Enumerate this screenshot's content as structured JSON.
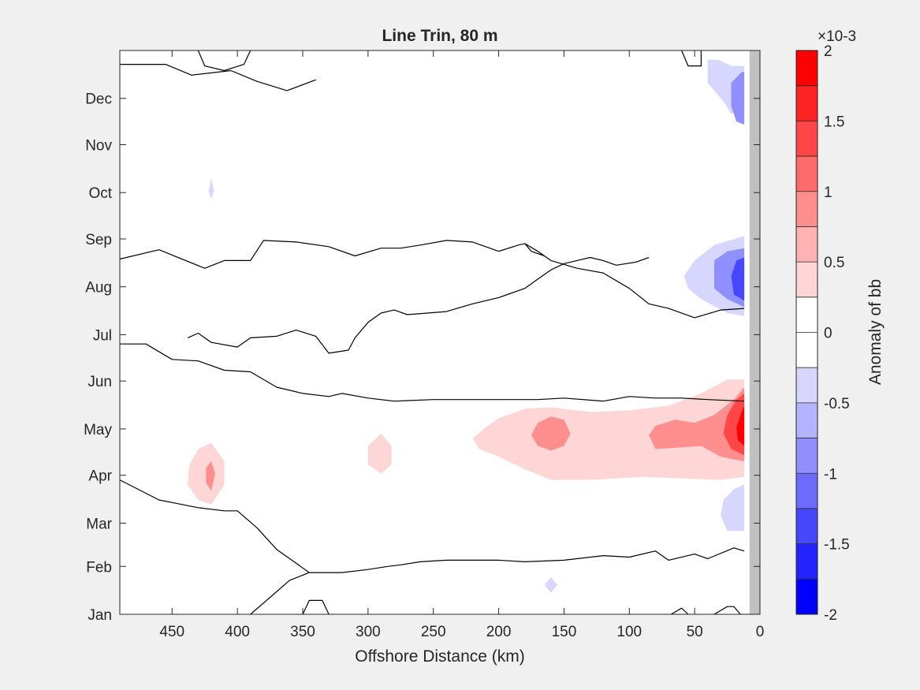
{
  "chart_data": {
    "type": "contour",
    "title": "Line Trin, 80 m",
    "xlabel": "Offshore Distance (km)",
    "ylabel": "",
    "xlim": [
      490,
      0
    ],
    "x_reversed": true,
    "x_ticks": [
      450,
      400,
      350,
      300,
      250,
      200,
      150,
      100,
      50,
      0
    ],
    "y_ticks": [
      "Jan",
      "Feb",
      "Mar",
      "Apr",
      "May",
      "Jun",
      "Jul",
      "Aug",
      "Sep",
      "Oct",
      "Nov",
      "Dec"
    ],
    "y_tick_days": [
      1,
      32,
      60,
      91,
      121,
      152,
      182,
      213,
      244,
      274,
      305,
      335
    ],
    "ylim_days": [
      1,
      366
    ],
    "land_mask_km": [
      0,
      8
    ],
    "colorbar": {
      "label": "Anomaly of bb",
      "exponent": "×10-3",
      "clim": [
        -2,
        2
      ],
      "ticks": [
        2,
        1.5,
        1,
        0.5,
        0,
        -0.5,
        -1,
        -1.5,
        -2
      ],
      "tick_labels": [
        "2",
        "1.5",
        "1",
        "0.5",
        "0",
        "-0.5",
        "-1",
        "-1.5",
        "-2"
      ],
      "colors": [
        "#0000ff",
        "#2323ff",
        "#4747ff",
        "#6b6bff",
        "#8f8fff",
        "#b3b3ff",
        "#d6d6ff",
        "#ffffff",
        "#ffffff",
        "#ffd6d6",
        "#ffb3b3",
        "#ff8f8f",
        "#ff6b6b",
        "#ff4747",
        "#ff2323",
        "#ff0000"
      ]
    },
    "contours": [
      {
        "level": "0",
        "points": [
          [
            490,
            357
          ],
          [
            455,
            357
          ],
          [
            435,
            350
          ],
          [
            405,
            353
          ],
          [
            385,
            346
          ],
          [
            362,
            340
          ],
          [
            340,
            347
          ]
        ]
      },
      {
        "level": "0",
        "points": [
          [
            350,
            1
          ],
          [
            345,
            10
          ],
          [
            335,
            10
          ],
          [
            330,
            1
          ]
        ]
      },
      {
        "level": "0",
        "points": [
          [
            390,
            1
          ],
          [
            375,
            12
          ],
          [
            360,
            23
          ],
          [
            345,
            28
          ],
          [
            330,
            28
          ],
          [
            320,
            28
          ],
          [
            300,
            30
          ],
          [
            285,
            32
          ],
          [
            275,
            33
          ],
          [
            260,
            35
          ],
          [
            240,
            36
          ],
          [
            220,
            36
          ],
          [
            200,
            36
          ],
          [
            180,
            35
          ],
          [
            150,
            36
          ],
          [
            120,
            39
          ],
          [
            100,
            38
          ],
          [
            80,
            42
          ],
          [
            70,
            36
          ],
          [
            50,
            40
          ],
          [
            40,
            37
          ],
          [
            20,
            44
          ],
          [
            12,
            42
          ]
        ]
      },
      {
        "level": "0",
        "points": [
          [
            490,
            231
          ],
          [
            460,
            237
          ],
          [
            425,
            225
          ],
          [
            410,
            230
          ],
          [
            390,
            230
          ],
          [
            380,
            243
          ],
          [
            355,
            242
          ],
          [
            330,
            239
          ],
          [
            310,
            233
          ],
          [
            290,
            238
          ],
          [
            275,
            238
          ],
          [
            260,
            240
          ],
          [
            240,
            243
          ],
          [
            220,
            242
          ],
          [
            200,
            236
          ],
          [
            185,
            240
          ],
          [
            180,
            241
          ],
          [
            170,
            236
          ],
          [
            160,
            230
          ],
          [
            140,
            225
          ],
          [
            120,
            222
          ],
          [
            100,
            212
          ],
          [
            85,
            202
          ],
          [
            70,
            199
          ],
          [
            50,
            193
          ],
          [
            30,
            198
          ],
          [
            12,
            199
          ]
        ]
      },
      {
        "level": "0",
        "points": [
          [
            490,
            176
          ],
          [
            470,
            176
          ],
          [
            450,
            166
          ],
          [
            430,
            165
          ],
          [
            410,
            159
          ],
          [
            390,
            158
          ],
          [
            370,
            148
          ],
          [
            350,
            144
          ],
          [
            330,
            142
          ],
          [
            320,
            144
          ],
          [
            300,
            141
          ],
          [
            280,
            139
          ],
          [
            250,
            140
          ],
          [
            220,
            140
          ],
          [
            200,
            140
          ],
          [
            170,
            140
          ],
          [
            150,
            141
          ],
          [
            120,
            139
          ],
          [
            100,
            142
          ],
          [
            80,
            141
          ],
          [
            60,
            141
          ],
          [
            40,
            140
          ],
          [
            12,
            139
          ]
        ]
      },
      {
        "level": "0",
        "points": [
          [
            490,
            88
          ],
          [
            460,
            75
          ],
          [
            430,
            70
          ],
          [
            410,
            68
          ],
          [
            400,
            68
          ],
          [
            385,
            57
          ],
          [
            370,
            43
          ],
          [
            345,
            28
          ]
        ]
      },
      {
        "level": "0",
        "points": [
          [
            35,
            1
          ],
          [
            25,
            6
          ],
          [
            20,
            6
          ],
          [
            15,
            1
          ]
        ]
      },
      {
        "level": "0",
        "points": [
          [
            68,
            1
          ],
          [
            60,
            5
          ],
          [
            55,
            1
          ]
        ]
      },
      {
        "level": "0",
        "points": [
          [
            438,
            180
          ],
          [
            430,
            183
          ],
          [
            420,
            177
          ],
          [
            400,
            174
          ],
          [
            390,
            180
          ],
          [
            370,
            181
          ],
          [
            355,
            185
          ],
          [
            340,
            181
          ],
          [
            330,
            170
          ],
          [
            315,
            172
          ],
          [
            310,
            180
          ],
          [
            300,
            190
          ],
          [
            290,
            196
          ],
          [
            280,
            198
          ],
          [
            270,
            195
          ],
          [
            240,
            197
          ],
          [
            220,
            202
          ],
          [
            200,
            206
          ],
          [
            180,
            212
          ],
          [
            170,
            218
          ],
          [
            160,
            224
          ],
          [
            150,
            228
          ],
          [
            140,
            230
          ],
          [
            130,
            232
          ],
          [
            120,
            230
          ],
          [
            110,
            227
          ],
          [
            95,
            229
          ],
          [
            85,
            232
          ]
        ]
      },
      {
        "level": "0",
        "points": [
          [
            180,
            241
          ],
          [
            175,
            236
          ],
          [
            165,
            233
          ]
        ]
      },
      {
        "level": "0",
        "points": [
          [
            430,
            366
          ],
          [
            425,
            356
          ],
          [
            410,
            353
          ],
          [
            395,
            357
          ],
          [
            390,
            366
          ]
        ]
      },
      {
        "level": "0",
        "points": [
          [
            60,
            366
          ],
          [
            55,
            356
          ],
          [
            45,
            356
          ],
          [
            45,
            366
          ]
        ]
      }
    ],
    "filled_regions": [
      {
        "value": -0.5,
        "points": [
          [
            12,
            328
          ],
          [
            22,
            325
          ],
          [
            28,
            333
          ],
          [
            40,
            345
          ],
          [
            40,
            360
          ],
          [
            32,
            360
          ],
          [
            22,
            356
          ],
          [
            12,
            356
          ]
        ]
      },
      {
        "value": -1,
        "points": [
          [
            12,
            318
          ],
          [
            18,
            320
          ],
          [
            22,
            330
          ],
          [
            22,
            345
          ],
          [
            14,
            352
          ],
          [
            12,
            352
          ]
        ]
      },
      {
        "value": -0.5,
        "points": [
          [
            12,
            194
          ],
          [
            25,
            196
          ],
          [
            45,
            205
          ],
          [
            55,
            212
          ],
          [
            58,
            220
          ],
          [
            50,
            230
          ],
          [
            35,
            240
          ],
          [
            12,
            246
          ]
        ]
      },
      {
        "value": -1,
        "points": [
          [
            12,
            200
          ],
          [
            25,
            205
          ],
          [
            35,
            212
          ],
          [
            35,
            230
          ],
          [
            25,
            236
          ],
          [
            12,
            238
          ]
        ]
      },
      {
        "value": -1.5,
        "points": [
          [
            12,
            204
          ],
          [
            20,
            208
          ],
          [
            22,
            220
          ],
          [
            18,
            230
          ],
          [
            12,
            232
          ]
        ]
      },
      {
        "value": -0.5,
        "points": [
          [
            12,
            55
          ],
          [
            25,
            55
          ],
          [
            30,
            65
          ],
          [
            28,
            75
          ],
          [
            20,
            82
          ],
          [
            12,
            85
          ]
        ]
      },
      {
        "value": -0.5,
        "points": [
          [
            160,
            15
          ],
          [
            155,
            20
          ],
          [
            160,
            25
          ],
          [
            165,
            20
          ]
        ]
      },
      {
        "value": -0.5,
        "points": [
          [
            420,
            270
          ],
          [
            422,
            275
          ],
          [
            420,
            283
          ],
          [
            418,
            275
          ]
        ]
      },
      {
        "value": 0.5,
        "points": [
          [
            12,
            90
          ],
          [
            30,
            88
          ],
          [
            60,
            89
          ],
          [
            90,
            90
          ],
          [
            130,
            88
          ],
          [
            160,
            88
          ],
          [
            180,
            95
          ],
          [
            200,
            103
          ],
          [
            215,
            108
          ],
          [
            220,
            115
          ],
          [
            210,
            122
          ],
          [
            200,
            128
          ],
          [
            180,
            134
          ],
          [
            160,
            135
          ],
          [
            130,
            132
          ],
          [
            100,
            133
          ],
          [
            70,
            136
          ],
          [
            45,
            144
          ],
          [
            25,
            153
          ],
          [
            12,
            153
          ]
        ]
      },
      {
        "value": 1,
        "points": [
          [
            12,
            100
          ],
          [
            30,
            103
          ],
          [
            45,
            110
          ],
          [
            60,
            109
          ],
          [
            80,
            108
          ],
          [
            85,
            117
          ],
          [
            80,
            123
          ],
          [
            65,
            127
          ],
          [
            50,
            125
          ],
          [
            35,
            130
          ],
          [
            20,
            140
          ],
          [
            12,
            148
          ]
        ]
      },
      {
        "value": 1,
        "points": [
          [
            160,
            107
          ],
          [
            170,
            110
          ],
          [
            175,
            117
          ],
          [
            170,
            125
          ],
          [
            160,
            129
          ],
          [
            150,
            127
          ],
          [
            145,
            118
          ],
          [
            150,
            110
          ]
        ]
      },
      {
        "value": 1.5,
        "points": [
          [
            12,
            104
          ],
          [
            22,
            108
          ],
          [
            28,
            118
          ],
          [
            25,
            130
          ],
          [
            18,
            140
          ],
          [
            12,
            144
          ]
        ]
      },
      {
        "value": 2,
        "points": [
          [
            12,
            110
          ],
          [
            17,
            114
          ],
          [
            18,
            122
          ],
          [
            14,
            132
          ],
          [
            12,
            136
          ]
        ]
      },
      {
        "value": 0.5,
        "points": [
          [
            420,
            72
          ],
          [
            430,
            75
          ],
          [
            438,
            85
          ],
          [
            437,
            97
          ],
          [
            430,
            108
          ],
          [
            420,
            112
          ],
          [
            410,
            100
          ],
          [
            410,
            85
          ]
        ]
      },
      {
        "value": 1,
        "points": [
          [
            420,
            81
          ],
          [
            424,
            86
          ],
          [
            424,
            96
          ],
          [
            420,
            100
          ],
          [
            417,
            92
          ]
        ]
      },
      {
        "value": 0.5,
        "points": [
          [
            290,
            92
          ],
          [
            300,
            98
          ],
          [
            300,
            110
          ],
          [
            290,
            118
          ],
          [
            282,
            110
          ],
          [
            282,
            98
          ]
        ]
      }
    ]
  }
}
